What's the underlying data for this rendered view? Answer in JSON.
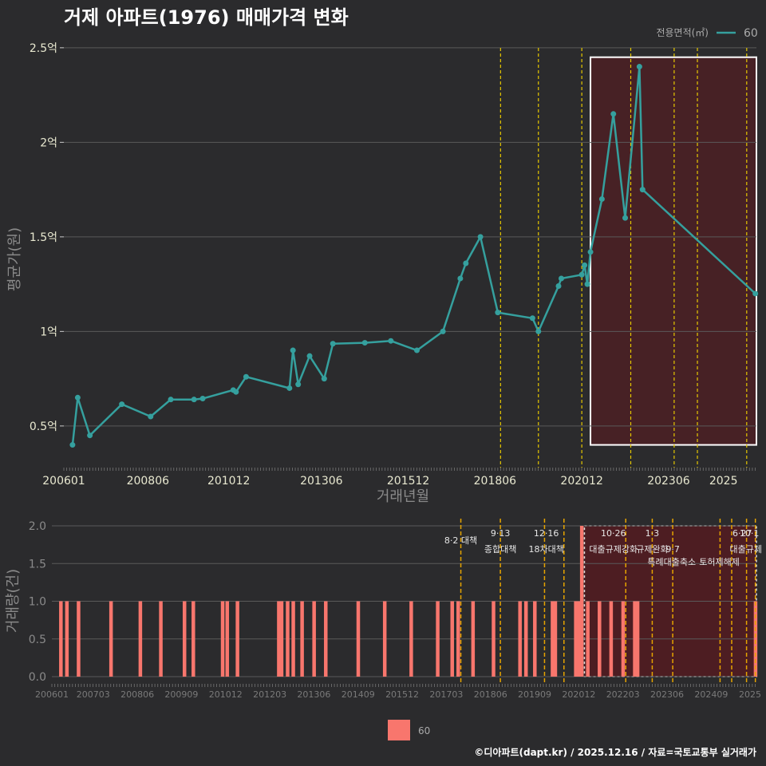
{
  "title": "거제 아파트(1976) 매매가격 변화",
  "caption": "©디아파트(dapt.kr) / 2025.12.16 / 자료=국토교통부 실거래가",
  "colors": {
    "bg": "#2b2b2d",
    "line": "#35a09e",
    "bar": "#f8766d",
    "vline": "#e6c800",
    "vline_bottom": "#e6a400",
    "highlight": "#5a1a1f",
    "grid": "#5a5a5a"
  },
  "chart_data": [
    {
      "type": "line",
      "title": "거제 아파트(1976) 매매가격 변화",
      "xlabel": "거래년월",
      "ylabel": "평균가(원)",
      "legend_title": "전용면적(㎡)",
      "legend_position": "top-right",
      "x_range": [
        2006.0,
        2025.95
      ],
      "ylim": [
        0.28,
        2.55
      ],
      "y_ticks": [
        0.5,
        1.0,
        1.5,
        2.0,
        2.5
      ],
      "y_tick_labels": [
        "0.5억",
        "1억",
        "1.5억",
        "2억",
        "2.5억"
      ],
      "x_ticks": [
        2006.0,
        2008.42,
        2010.75,
        2013.42,
        2015.92,
        2018.42,
        2020.92,
        2023.42,
        2025.0
      ],
      "x_tick_labels": [
        "200601",
        "200806",
        "201012",
        "201306",
        "201512",
        "201806",
        "202012",
        "202306",
        "2025"
      ],
      "series": [
        {
          "name": "60",
          "unit": "억원",
          "points": [
            [
              2006.25,
              0.4
            ],
            [
              2006.4,
              0.65
            ],
            [
              2006.75,
              0.45
            ],
            [
              2007.67,
              0.615
            ],
            [
              2008.5,
              0.55
            ],
            [
              2009.08,
              0.64
            ],
            [
              2009.75,
              0.64
            ],
            [
              2010.0,
              0.645
            ],
            [
              2010.88,
              0.69
            ],
            [
              2010.96,
              0.68
            ],
            [
              2011.25,
              0.76
            ],
            [
              2012.5,
              0.7
            ],
            [
              2012.6,
              0.9
            ],
            [
              2012.75,
              0.72
            ],
            [
              2013.08,
              0.87
            ],
            [
              2013.5,
              0.75
            ],
            [
              2013.75,
              0.935
            ],
            [
              2014.67,
              0.94
            ],
            [
              2015.42,
              0.95
            ],
            [
              2016.17,
              0.9
            ],
            [
              2016.92,
              1.0
            ],
            [
              2017.42,
              1.28
            ],
            [
              2017.58,
              1.36
            ],
            [
              2018.0,
              1.5
            ],
            [
              2018.5,
              1.1
            ],
            [
              2019.5,
              1.07
            ],
            [
              2019.67,
              1.0
            ],
            [
              2020.25,
              1.24
            ],
            [
              2020.33,
              1.28
            ],
            [
              2020.92,
              1.3
            ],
            [
              2021.0,
              1.35
            ],
            [
              2021.08,
              1.25
            ],
            [
              2021.17,
              1.42
            ],
            [
              2021.5,
              1.7
            ],
            [
              2021.83,
              2.15
            ],
            [
              2022.17,
              1.6
            ],
            [
              2022.58,
              2.4
            ],
            [
              2022.67,
              1.75
            ],
            [
              2025.92,
              1.2
            ]
          ]
        }
      ],
      "policy_lines": [
        2018.58,
        2019.67,
        2020.92,
        2022.33,
        2023.58,
        2024.25,
        2025.67,
        2026.0,
        2026.33
      ],
      "highlight_range": {
        "x": [
          2021.17,
          2026.0
        ],
        "y": [
          0.4,
          2.45
        ]
      }
    },
    {
      "type": "bar",
      "ylabel": "거래량(건)",
      "legend": [
        "60"
      ],
      "ylim": [
        0,
        2.0
      ],
      "y_ticks": [
        0.0,
        0.5,
        1.0,
        1.5,
        2.0
      ],
      "y_tick_labels": [
        "0.0",
        "0.5",
        "1.0",
        "1.5",
        "2.0"
      ],
      "x_range": [
        2006.0,
        2025.95
      ],
      "x_ticks": [
        2006.0,
        2007.17,
        2008.42,
        2009.67,
        2010.92,
        2012.17,
        2013.42,
        2014.67,
        2015.92,
        2017.17,
        2018.42,
        2019.67,
        2020.92,
        2022.17,
        2023.42,
        2024.67,
        2025.8
      ],
      "x_tick_labels": [
        "200601",
        "200703",
        "200806",
        "200909",
        "201012",
        "201203",
        "201306",
        "201409",
        "201512",
        "201703",
        "201806",
        "201909",
        "202012",
        "202203",
        "202306",
        "202409",
        "2025"
      ],
      "bars": [
        [
          2006.25,
          1
        ],
        [
          2006.42,
          1
        ],
        [
          2006.75,
          1
        ],
        [
          2007.67,
          1
        ],
        [
          2008.5,
          1
        ],
        [
          2009.08,
          1
        ],
        [
          2009.75,
          1
        ],
        [
          2010.0,
          1
        ],
        [
          2010.83,
          1
        ],
        [
          2010.96,
          1
        ],
        [
          2011.25,
          1
        ],
        [
          2012.42,
          1
        ],
        [
          2012.5,
          1
        ],
        [
          2012.67,
          1
        ],
        [
          2012.83,
          1
        ],
        [
          2013.08,
          1
        ],
        [
          2013.42,
          1
        ],
        [
          2013.75,
          1
        ],
        [
          2014.67,
          1
        ],
        [
          2015.42,
          1
        ],
        [
          2016.17,
          1
        ],
        [
          2016.92,
          1
        ],
        [
          2017.33,
          1
        ],
        [
          2017.5,
          1
        ],
        [
          2017.92,
          1
        ],
        [
          2018.5,
          1
        ],
        [
          2019.25,
          1
        ],
        [
          2019.42,
          1
        ],
        [
          2019.67,
          1
        ],
        [
          2020.17,
          1
        ],
        [
          2020.25,
          1
        ],
        [
          2020.83,
          1
        ],
        [
          2020.92,
          1
        ],
        [
          2021.0,
          2
        ],
        [
          2021.17,
          1
        ],
        [
          2021.5,
          1
        ],
        [
          2021.83,
          1
        ],
        [
          2022.17,
          1
        ],
        [
          2022.5,
          1
        ],
        [
          2022.58,
          1
        ],
        [
          2025.92,
          1
        ]
      ],
      "annotations": [
        {
          "x": 2017.58,
          "text": "8·2 대책",
          "row": 1
        },
        {
          "x": 2018.7,
          "text": "9·13",
          "row": 0
        },
        {
          "x": 2018.7,
          "text": "종합대책",
          "row": 2
        },
        {
          "x": 2020.0,
          "text": "12·16",
          "row": 0
        },
        {
          "x": 2020.0,
          "text": "18차대책",
          "row": 2
        },
        {
          "x": 2021.9,
          "text": "10·26",
          "row": 0
        },
        {
          "x": 2021.9,
          "text": "대출규제강화",
          "row": 2
        },
        {
          "x": 2023.0,
          "text": "1·3",
          "row": 0
        },
        {
          "x": 2023.0,
          "text": "규제완화",
          "row": 2
        },
        {
          "x": 2023.58,
          "text": "9·7",
          "row": 2
        },
        {
          "x": 2023.55,
          "text": "특례대출축소",
          "row": 3
        },
        {
          "x": 2024.9,
          "text": "토허제해제",
          "row": 3
        },
        {
          "x": 2025.55,
          "text": "6·27",
          "row": 0
        },
        {
          "x": 2025.75,
          "text": "10·1",
          "row": 0
        },
        {
          "x": 2025.65,
          "text": "대출규제",
          "row": 2
        }
      ],
      "policy_lines": [
        2017.58,
        2018.7,
        2019.95,
        2020.5,
        2022.25,
        2023.0,
        2023.58,
        2024.92,
        2025.25,
        2025.67,
        2025.92
      ],
      "highlight_range": {
        "x": [
          2021.08,
          2026.0
        ],
        "y": [
          0,
          2.0
        ]
      }
    }
  ]
}
